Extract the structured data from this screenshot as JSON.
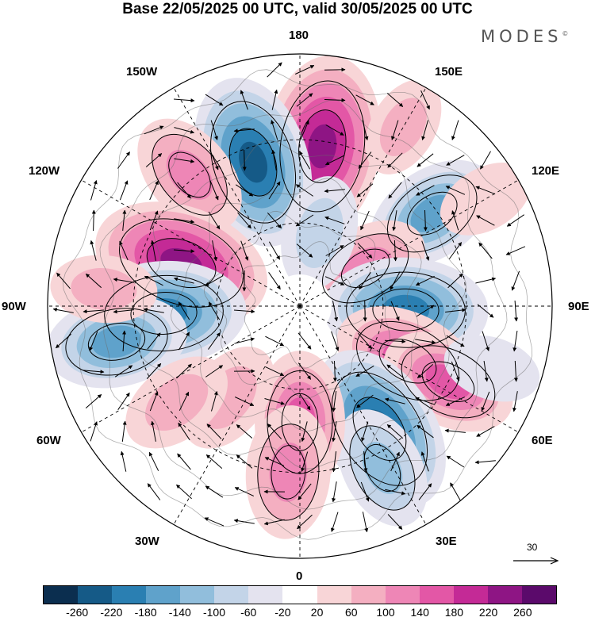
{
  "title": "Base 22/05/2025 00 UTC, valid 30/05/2025 00 UTC",
  "brand": "MODES",
  "brand_mark": "©",
  "longitude_labels": {
    "top": "180",
    "top_left": "150W",
    "top_right": "150E",
    "upper_left": "120W",
    "upper_right": "120E",
    "left": "90W",
    "right": "90E",
    "lower_left": "60W",
    "lower_right": "60E",
    "bottom_left": "30W",
    "bottom_right": "30E",
    "bottom": "0"
  },
  "vector_scale_label": "30",
  "colorbar": {
    "colors": [
      "#0b2e4f",
      "#155a87",
      "#2a7fb2",
      "#5fa2cb",
      "#91bedc",
      "#c3d4e8",
      "#e4e3ef",
      "#ffffff",
      "#f8d5d7",
      "#f4afc1",
      "#ee86b6",
      "#e357a6",
      "#c42a96",
      "#8e1584",
      "#5b0a6b"
    ],
    "tick_labels": [
      "-260",
      "-220",
      "-180",
      "-140",
      "-100",
      "-60",
      "-20",
      "20",
      "60",
      "100",
      "140",
      "180",
      "220",
      "260"
    ]
  },
  "anomaly_centers": [
    {
      "lat_rad": 0.64,
      "lon_deg": 172,
      "value": 240
    },
    {
      "lat_rad": 0.6,
      "lon_deg": -162,
      "value": -220
    },
    {
      "lat_rad": 0.68,
      "lon_deg": -140,
      "value": 120
    },
    {
      "lat_rad": 0.64,
      "lon_deg": 125,
      "value": -140
    },
    {
      "lat_rad": 0.3,
      "lon_deg": 120,
      "value": 120
    },
    {
      "lat_rad": 0.3,
      "lon_deg": 165,
      "value": -90
    },
    {
      "lat_rad": 0.5,
      "lon_deg": -110,
      "value": 230
    },
    {
      "lat_rad": 0.54,
      "lon_deg": -87,
      "value": -200
    },
    {
      "lat_rad": 0.74,
      "lon_deg": -79,
      "value": -150
    },
    {
      "lat_rad": 0.42,
      "lon_deg": 88,
      "value": -200
    },
    {
      "lat_rad": 0.48,
      "lon_deg": 63,
      "value": 170
    },
    {
      "lat_rad": 0.66,
      "lon_deg": 63,
      "value": 140
    },
    {
      "lat_rad": 0.58,
      "lon_deg": 33,
      "value": -220
    },
    {
      "lat_rad": 0.72,
      "lon_deg": 27,
      "value": -110
    },
    {
      "lat_rad": 0.46,
      "lon_deg": 0,
      "value": 150
    },
    {
      "lat_rad": 0.66,
      "lon_deg": -4,
      "value": 130
    },
    {
      "lat_rad": 0.46,
      "lon_deg": -38,
      "value": 90
    },
    {
      "lat_rad": 0.62,
      "lon_deg": -52,
      "value": 90
    },
    {
      "lat_rad": 0.8,
      "lon_deg": 72,
      "value": -50
    },
    {
      "lat_rad": 0.85,
      "lon_deg": 120,
      "value": 50
    },
    {
      "lat_rad": 0.78,
      "lon_deg": -95,
      "value": 70
    },
    {
      "lat_rad": 0.82,
      "lon_deg": 150,
      "value": 60
    }
  ]
}
